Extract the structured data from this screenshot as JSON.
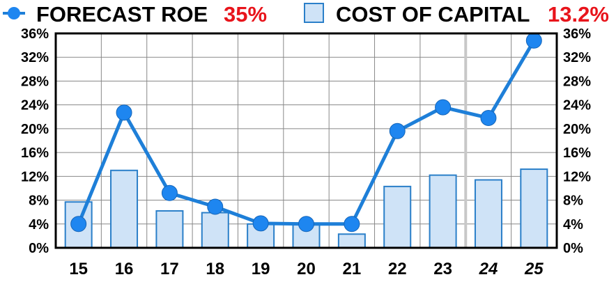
{
  "chart_data": {
    "type": "bar+line",
    "categories": [
      "15",
      "16",
      "17",
      "18",
      "19",
      "20",
      "21",
      "22",
      "23",
      "24",
      "25"
    ],
    "italic_categories": [
      "24",
      "25"
    ],
    "series": [
      {
        "name": "FORECAST ROE",
        "type": "line",
        "values": [
          4,
          22.7,
          9.2,
          6.9,
          4.1,
          4,
          4,
          19.6,
          23.6,
          21.8,
          34.8
        ]
      },
      {
        "name": "COST OF CAPITAL",
        "type": "bar",
        "values": [
          7.7,
          13,
          6.2,
          5.9,
          4,
          4,
          2.3,
          10.3,
          12.2,
          11.4,
          13.2
        ]
      }
    ],
    "legend": {
      "roe_label": "FORECAST ROE",
      "roe_value": "35%",
      "coc_label": "COST OF CAPITAL",
      "coc_value": "13.2%",
      "placement": "top"
    },
    "ylim": [
      0,
      36
    ],
    "yticks": [
      "0%",
      "4%",
      "8%",
      "12%",
      "16%",
      "20%",
      "24%",
      "28%",
      "32%",
      "36%"
    ],
    "grid": true,
    "colors": {
      "line": "#1e7fd8",
      "marker": "#1e86f0",
      "bar_fill": "#cfe3f7",
      "bar_stroke": "#2a7fc9",
      "legend_value": "#e8141b",
      "grid": "#888888",
      "forecast_divider": "#c8c8c8"
    }
  }
}
